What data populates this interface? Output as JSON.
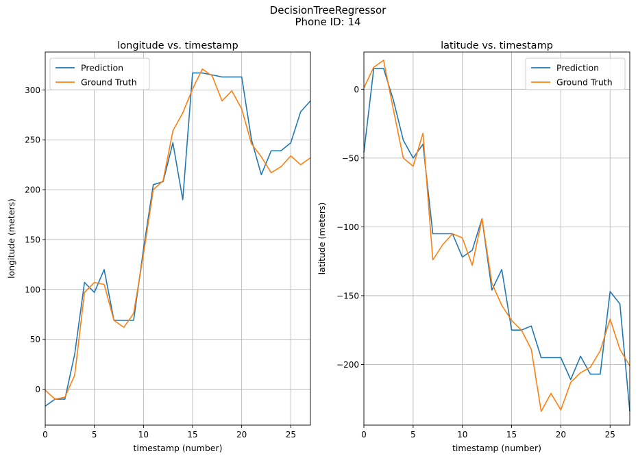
{
  "figure": {
    "title": "DecisionTreeRegressor",
    "subtitle": "Phone ID: 14"
  },
  "colors": {
    "prediction": "#1f77b4",
    "ground_truth": "#ff7f0e",
    "grid": "#b0b0b0"
  },
  "chart_data": [
    {
      "type": "line",
      "title": "longitude vs. timestamp",
      "xlabel": "timestamp (number)",
      "ylabel": "longitude (meters)",
      "xlim": [
        0,
        27
      ],
      "ylim": [
        -36,
        338
      ],
      "xticks": [
        0,
        5,
        10,
        15,
        20,
        25
      ],
      "yticks": [
        0,
        50,
        100,
        150,
        200,
        250,
        300
      ],
      "grid": true,
      "legend_position": "top-left",
      "x": [
        0,
        1,
        2,
        3,
        4,
        5,
        6,
        7,
        8,
        9,
        10,
        11,
        12,
        13,
        14,
        15,
        16,
        17,
        18,
        19,
        20,
        21,
        22,
        23,
        24,
        25,
        26,
        27
      ],
      "series": [
        {
          "name": "Prediction",
          "color": "#1f77b4",
          "values": [
            -17,
            -10,
            -10,
            35,
            107,
            97,
            120,
            69,
            69,
            69,
            140,
            205,
            208,
            247,
            190,
            317,
            317,
            315,
            313,
            313,
            313,
            250,
            215,
            239,
            239,
            247,
            278,
            289
          ]
        },
        {
          "name": "Ground Truth",
          "color": "#ff7f0e",
          "values": [
            -1,
            -10,
            -8,
            14,
            97,
            107,
            105,
            69,
            62,
            76,
            135,
            200,
            209,
            259,
            277,
            301,
            321,
            314,
            289,
            299,
            281,
            246,
            233,
            217,
            223,
            234,
            225,
            232
          ]
        }
      ]
    },
    {
      "type": "line",
      "title": "latitude vs. timestamp",
      "xlabel": "timestamp (number)",
      "ylabel": "latitude (meters)",
      "xlim": [
        0,
        27
      ],
      "ylim": [
        -244,
        27
      ],
      "xticks": [
        0,
        5,
        10,
        15,
        20,
        25
      ],
      "yticks": [
        0,
        -50,
        -100,
        -150,
        -200
      ],
      "grid": true,
      "legend_position": "top-right",
      "x": [
        0,
        1,
        2,
        3,
        4,
        5,
        6,
        7,
        8,
        9,
        10,
        11,
        12,
        13,
        14,
        15,
        16,
        17,
        18,
        19,
        20,
        21,
        22,
        23,
        24,
        25,
        26,
        27
      ],
      "series": [
        {
          "name": "Prediction",
          "color": "#1f77b4",
          "values": [
            -46,
            15,
            15,
            -8,
            -37,
            -50,
            -40,
            -105,
            -105,
            -105,
            -122,
            -117,
            -94,
            -146,
            -131,
            -175,
            -175,
            -172,
            -195,
            -195,
            -195,
            -211,
            -194,
            -207,
            -207,
            -147,
            -156,
            -234
          ]
        },
        {
          "name": "Ground Truth",
          "color": "#ff7f0e",
          "values": [
            1,
            16,
            21,
            -15,
            -50,
            -56,
            -32,
            -124,
            -113,
            -105,
            -108,
            -128,
            -94,
            -141,
            -157,
            -168,
            -175,
            -189,
            -234,
            -221,
            -233,
            -213,
            -206,
            -202,
            -190,
            -167,
            -189,
            -201
          ]
        }
      ]
    }
  ]
}
